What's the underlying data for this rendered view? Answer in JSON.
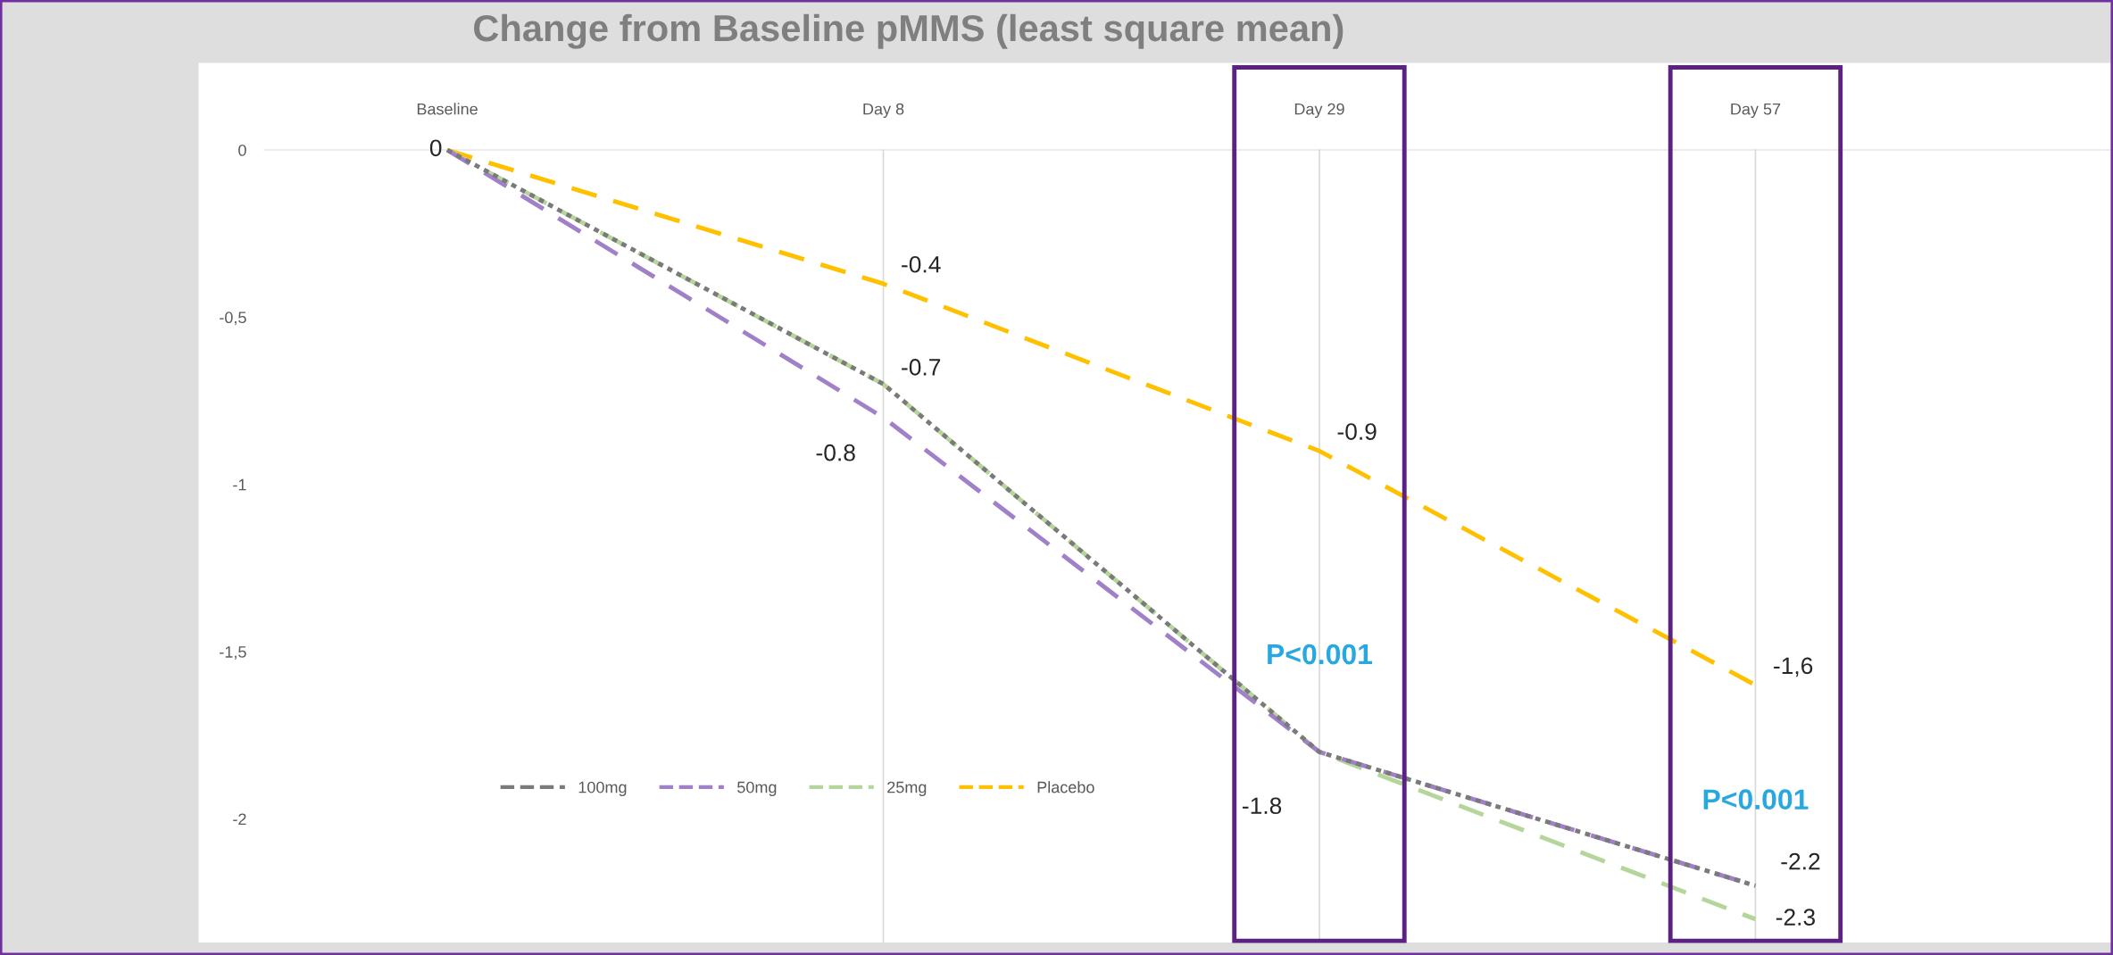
{
  "chart_data": {
    "type": "line",
    "title": "Change from Baseline pMMS (least square mean)",
    "categories": [
      "Baseline",
      "Day 8",
      "Day 29",
      "Day 57"
    ],
    "series": [
      {
        "name": "100mg",
        "color": "#7a7a7a",
        "line_style": "dotted",
        "values": [
          0,
          -0.7,
          -1.8,
          -2.2
        ],
        "value_labels": [
          "0",
          "-0.7",
          null,
          null
        ]
      },
      {
        "name": "50mg",
        "color": "#a080c8",
        "line_style": "dashed",
        "values": [
          0,
          -0.8,
          -1.8,
          -2.2
        ],
        "value_labels": [
          null,
          "-0.8",
          "-1.8",
          "-2.2"
        ]
      },
      {
        "name": "25mg",
        "color": "#b5d69a",
        "line_style": "dashed",
        "values": [
          0,
          -0.7,
          -1.8,
          -2.3
        ],
        "value_labels": [
          null,
          null,
          null,
          "-2.3"
        ]
      },
      {
        "name": "Placebo",
        "color": "#ffc000",
        "line_style": "dashed",
        "values": [
          0,
          -0.4,
          -0.9,
          -1.6
        ],
        "value_labels": [
          null,
          "-0.4",
          "-0.9",
          "-1,6"
        ]
      }
    ],
    "ylim": [
      -2.37,
      0.26
    ],
    "yticks": [
      0,
      {
        "value": -0.5,
        "label": "-0,5"
      },
      -1,
      {
        "value": -1.5,
        "label": "-1,5"
      },
      -2
    ],
    "grid": "x",
    "legend": "bottom left",
    "marker": "none",
    "annotations": [
      "P<0.001",
      "P<0.001"
    ]
  }
}
